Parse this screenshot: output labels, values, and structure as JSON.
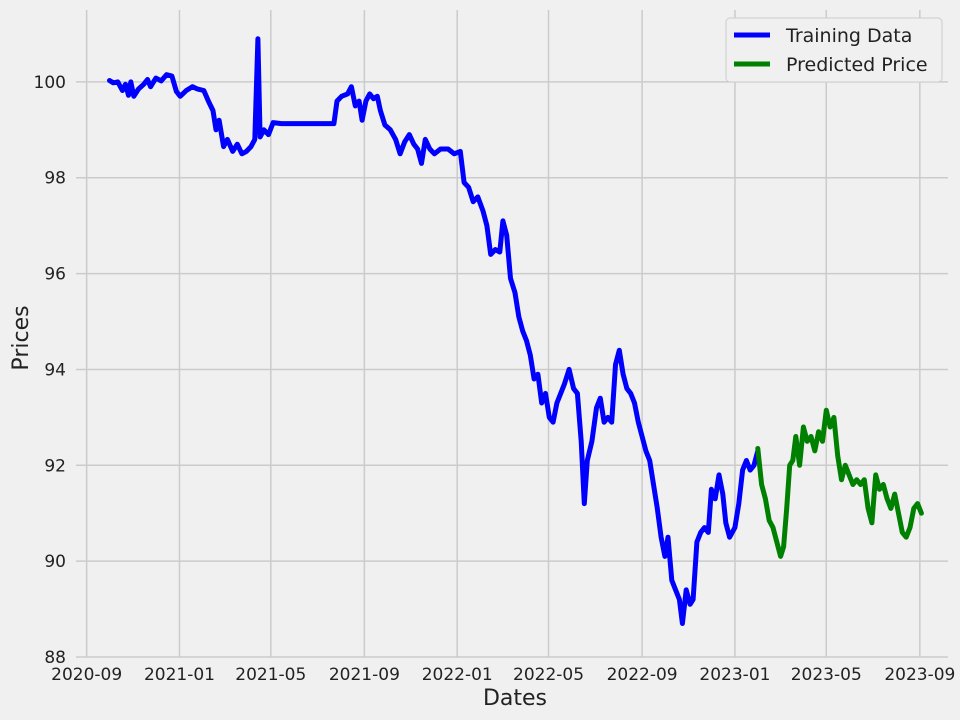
{
  "chart_data": {
    "type": "line",
    "title": "",
    "xlabel": "Dates",
    "ylabel": "Prices",
    "ylim": [
      88,
      101.5
    ],
    "xlim": [
      "2020-08-18",
      "2023-10-08"
    ],
    "grid": true,
    "legend_position": "top-right",
    "x_ticks": [
      "2020-09",
      "2021-01",
      "2021-05",
      "2021-09",
      "2022-01",
      "2022-05",
      "2022-09",
      "2023-01",
      "2023-05",
      "2023-09"
    ],
    "y_ticks": [
      "88",
      "90",
      "92",
      "94",
      "96",
      "98",
      "100"
    ],
    "series": [
      {
        "name": "Training Data",
        "color": "#0000ff",
        "points": [
          [
            "2020-10-01",
            100.03
          ],
          [
            "2020-10-06",
            99.98
          ],
          [
            "2020-10-12",
            100.0
          ],
          [
            "2020-10-18",
            99.82
          ],
          [
            "2020-10-22",
            99.95
          ],
          [
            "2020-10-26",
            99.72
          ],
          [
            "2020-10-29",
            100.0
          ],
          [
            "2020-11-02",
            99.7
          ],
          [
            "2020-11-08",
            99.85
          ],
          [
            "2020-11-15",
            99.95
          ],
          [
            "2020-11-20",
            100.05
          ],
          [
            "2020-11-24",
            99.9
          ],
          [
            "2020-12-01",
            100.08
          ],
          [
            "2020-12-08",
            100.02
          ],
          [
            "2020-12-15",
            100.15
          ],
          [
            "2020-12-22",
            100.12
          ],
          [
            "2020-12-28",
            99.8
          ],
          [
            "2021-01-02",
            99.7
          ],
          [
            "2021-01-10",
            99.82
          ],
          [
            "2021-01-18",
            99.9
          ],
          [
            "2021-01-25",
            99.85
          ],
          [
            "2021-02-02",
            99.82
          ],
          [
            "2021-02-08",
            99.6
          ],
          [
            "2021-02-14",
            99.4
          ],
          [
            "2021-02-18",
            99.0
          ],
          [
            "2021-02-22",
            99.2
          ],
          [
            "2021-02-28",
            98.65
          ],
          [
            "2021-03-05",
            98.8
          ],
          [
            "2021-03-12",
            98.55
          ],
          [
            "2021-03-18",
            98.7
          ],
          [
            "2021-03-24",
            98.5
          ],
          [
            "2021-03-30",
            98.55
          ],
          [
            "2021-04-05",
            98.65
          ],
          [
            "2021-04-10",
            98.8
          ],
          [
            "2021-04-14",
            100.9
          ],
          [
            "2021-04-17",
            98.85
          ],
          [
            "2021-04-22",
            99.0
          ],
          [
            "2021-04-28",
            98.9
          ],
          [
            "2021-05-04",
            99.15
          ],
          [
            "2021-05-15",
            99.13
          ],
          [
            "2021-06-15",
            99.13
          ],
          [
            "2021-07-15",
            99.13
          ],
          [
            "2021-07-23",
            99.13
          ],
          [
            "2021-07-27",
            99.6
          ],
          [
            "2021-08-02",
            99.7
          ],
          [
            "2021-08-10",
            99.75
          ],
          [
            "2021-08-15",
            99.9
          ],
          [
            "2021-08-20",
            99.5
          ],
          [
            "2021-08-25",
            99.6
          ],
          [
            "2021-08-29",
            99.2
          ],
          [
            "2021-09-03",
            99.6
          ],
          [
            "2021-09-08",
            99.75
          ],
          [
            "2021-09-13",
            99.65
          ],
          [
            "2021-09-18",
            99.7
          ],
          [
            "2021-09-22",
            99.4
          ],
          [
            "2021-09-28",
            99.1
          ],
          [
            "2021-10-05",
            99.0
          ],
          [
            "2021-10-12",
            98.8
          ],
          [
            "2021-10-18",
            98.5
          ],
          [
            "2021-10-24",
            98.75
          ],
          [
            "2021-10-30",
            98.9
          ],
          [
            "2021-11-05",
            98.7
          ],
          [
            "2021-11-10",
            98.6
          ],
          [
            "2021-11-15",
            98.3
          ],
          [
            "2021-11-20",
            98.8
          ],
          [
            "2021-11-26",
            98.6
          ],
          [
            "2021-12-02",
            98.5
          ],
          [
            "2021-12-10",
            98.6
          ],
          [
            "2021-12-20",
            98.6
          ],
          [
            "2021-12-28",
            98.5
          ],
          [
            "2022-01-05",
            98.55
          ],
          [
            "2022-01-10",
            97.9
          ],
          [
            "2022-01-16",
            97.8
          ],
          [
            "2022-01-22",
            97.5
          ],
          [
            "2022-01-28",
            97.6
          ],
          [
            "2022-02-04",
            97.3
          ],
          [
            "2022-02-09",
            97.0
          ],
          [
            "2022-02-14",
            96.4
          ],
          [
            "2022-02-20",
            96.5
          ],
          [
            "2022-02-26",
            96.45
          ],
          [
            "2022-03-02",
            97.1
          ],
          [
            "2022-03-07",
            96.8
          ],
          [
            "2022-03-12",
            95.9
          ],
          [
            "2022-03-18",
            95.6
          ],
          [
            "2022-03-23",
            95.1
          ],
          [
            "2022-03-28",
            94.8
          ],
          [
            "2022-04-02",
            94.6
          ],
          [
            "2022-04-07",
            94.3
          ],
          [
            "2022-04-12",
            93.8
          ],
          [
            "2022-04-17",
            93.9
          ],
          [
            "2022-04-22",
            93.3
          ],
          [
            "2022-04-27",
            93.5
          ],
          [
            "2022-05-02",
            93.0
          ],
          [
            "2022-05-07",
            92.9
          ],
          [
            "2022-05-12",
            93.3
          ],
          [
            "2022-05-17",
            93.5
          ],
          [
            "2022-05-22",
            93.7
          ],
          [
            "2022-05-28",
            94.0
          ],
          [
            "2022-06-03",
            93.6
          ],
          [
            "2022-06-08",
            93.5
          ],
          [
            "2022-06-13",
            92.5
          ],
          [
            "2022-06-17",
            91.2
          ],
          [
            "2022-06-21",
            92.1
          ],
          [
            "2022-06-27",
            92.5
          ],
          [
            "2022-07-03",
            93.2
          ],
          [
            "2022-07-08",
            93.4
          ],
          [
            "2022-07-13",
            92.9
          ],
          [
            "2022-07-18",
            93.0
          ],
          [
            "2022-07-23",
            92.9
          ],
          [
            "2022-07-28",
            94.1
          ],
          [
            "2022-08-02",
            94.4
          ],
          [
            "2022-08-07",
            93.9
          ],
          [
            "2022-08-12",
            93.6
          ],
          [
            "2022-08-17",
            93.5
          ],
          [
            "2022-08-22",
            93.3
          ],
          [
            "2022-08-27",
            92.9
          ],
          [
            "2022-09-01",
            92.6
          ],
          [
            "2022-09-06",
            92.3
          ],
          [
            "2022-09-11",
            92.1
          ],
          [
            "2022-09-16",
            91.6
          ],
          [
            "2022-09-21",
            91.1
          ],
          [
            "2022-09-26",
            90.5
          ],
          [
            "2022-10-01",
            90.1
          ],
          [
            "2022-10-05",
            90.5
          ],
          [
            "2022-10-10",
            89.6
          ],
          [
            "2022-10-15",
            89.4
          ],
          [
            "2022-10-20",
            89.2
          ],
          [
            "2022-10-24",
            88.7
          ],
          [
            "2022-10-29",
            89.4
          ],
          [
            "2022-11-03",
            89.1
          ],
          [
            "2022-11-07",
            89.2
          ],
          [
            "2022-11-12",
            90.4
          ],
          [
            "2022-11-17",
            90.6
          ],
          [
            "2022-11-22",
            90.7
          ],
          [
            "2022-11-27",
            90.6
          ],
          [
            "2022-12-01",
            91.5
          ],
          [
            "2022-12-06",
            91.3
          ],
          [
            "2022-12-11",
            91.8
          ],
          [
            "2022-12-16",
            91.4
          ],
          [
            "2022-12-20",
            90.8
          ],
          [
            "2022-12-25",
            90.5
          ],
          [
            "2023-01-01",
            90.7
          ],
          [
            "2023-01-06",
            91.2
          ],
          [
            "2023-01-11",
            91.9
          ],
          [
            "2023-01-16",
            92.1
          ],
          [
            "2023-01-21",
            91.9
          ],
          [
            "2023-01-26",
            92.0
          ],
          [
            "2023-01-31",
            92.3
          ]
        ]
      },
      {
        "name": "Predicted Price",
        "color": "#008000",
        "points": [
          [
            "2023-01-31",
            92.35
          ],
          [
            "2023-02-05",
            91.6
          ],
          [
            "2023-02-10",
            91.3
          ],
          [
            "2023-02-15",
            90.85
          ],
          [
            "2023-02-20",
            90.7
          ],
          [
            "2023-02-25",
            90.4
          ],
          [
            "2023-03-02",
            90.1
          ],
          [
            "2023-03-06",
            90.3
          ],
          [
            "2023-03-10",
            91.1
          ],
          [
            "2023-03-14",
            92.0
          ],
          [
            "2023-03-18",
            92.1
          ],
          [
            "2023-03-22",
            92.6
          ],
          [
            "2023-03-27",
            92.0
          ],
          [
            "2023-04-01",
            92.8
          ],
          [
            "2023-04-06",
            92.5
          ],
          [
            "2023-04-11",
            92.6
          ],
          [
            "2023-04-16",
            92.3
          ],
          [
            "2023-04-21",
            92.7
          ],
          [
            "2023-04-26",
            92.5
          ],
          [
            "2023-05-01",
            93.15
          ],
          [
            "2023-05-06",
            92.8
          ],
          [
            "2023-05-11",
            93.0
          ],
          [
            "2023-05-16",
            92.2
          ],
          [
            "2023-05-21",
            91.7
          ],
          [
            "2023-05-26",
            92.0
          ],
          [
            "2023-05-31",
            91.8
          ],
          [
            "2023-06-05",
            91.6
          ],
          [
            "2023-06-10",
            91.7
          ],
          [
            "2023-06-15",
            91.6
          ],
          [
            "2023-06-20",
            91.7
          ],
          [
            "2023-06-25",
            91.1
          ],
          [
            "2023-06-30",
            90.8
          ],
          [
            "2023-07-05",
            91.8
          ],
          [
            "2023-07-10",
            91.5
          ],
          [
            "2023-07-15",
            91.6
          ],
          [
            "2023-07-20",
            91.3
          ],
          [
            "2023-07-25",
            91.1
          ],
          [
            "2023-07-30",
            91.4
          ],
          [
            "2023-08-04",
            91.0
          ],
          [
            "2023-08-09",
            90.6
          ],
          [
            "2023-08-14",
            90.5
          ],
          [
            "2023-08-19",
            90.7
          ],
          [
            "2023-08-24",
            91.1
          ],
          [
            "2023-08-29",
            91.2
          ],
          [
            "2023-09-03",
            91.0
          ]
        ]
      }
    ]
  }
}
